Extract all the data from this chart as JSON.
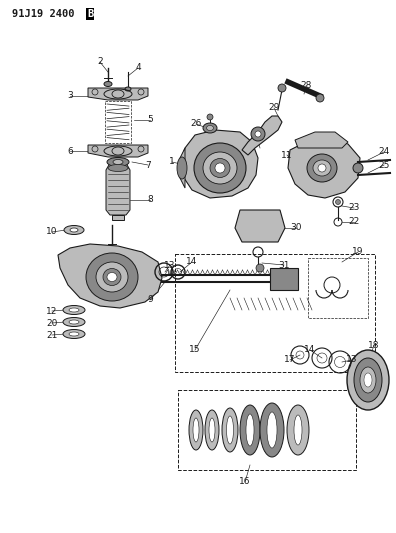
{
  "bg_color": "#ffffff",
  "fg_color": "#1a1a1a",
  "figsize": [
    3.96,
    5.33
  ],
  "dpi": 100,
  "title": "91J19 2400",
  "title_b": "B"
}
